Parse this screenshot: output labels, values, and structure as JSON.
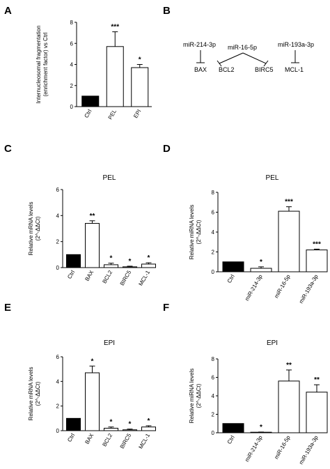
{
  "panels": {
    "A": {
      "label": "A"
    },
    "B": {
      "label": "B"
    },
    "C": {
      "label": "C"
    },
    "D": {
      "label": "D"
    },
    "E": {
      "label": "E"
    },
    "F": {
      "label": "F"
    }
  },
  "diagram": {
    "mirnas": [
      "miR-214-3p",
      "miR-16-5p",
      "miR-193a-3p"
    ],
    "targets": [
      "BAX",
      "BCL2",
      "BIRC5",
      "MCL-1"
    ]
  },
  "chart_data": [
    {
      "id": "A",
      "type": "bar",
      "title": "",
      "ylabel_lines": [
        "Internucleosomal fragmentation",
        "(enrichment factor) vs Ctrl"
      ],
      "categories": [
        "Ctrl",
        "PEL",
        "EPI"
      ],
      "values": [
        1.0,
        5.7,
        3.7
      ],
      "errors": [
        0,
        1.4,
        0.3
      ],
      "significance": [
        "",
        "***",
        "*"
      ],
      "fills": [
        "#000000",
        "#ffffff",
        "#ffffff"
      ],
      "ylim": [
        0,
        8
      ],
      "yticks": [
        "0",
        "2",
        "4",
        "6",
        "8"
      ]
    },
    {
      "id": "C",
      "type": "bar",
      "title": "PEL",
      "ylabel_lines": [
        "Relative mRNA levels",
        "(2^-ΔΔCt)"
      ],
      "categories": [
        "Ctrl",
        "BAX",
        "BCL2",
        "BIRC5",
        "MCL-1"
      ],
      "values": [
        1.0,
        3.4,
        0.22,
        0.06,
        0.27
      ],
      "errors": [
        0,
        0.2,
        0.12,
        0.05,
        0.1
      ],
      "significance": [
        "",
        "**",
        "*",
        "*",
        "*"
      ],
      "fills": [
        "#000000",
        "#ffffff",
        "#ffffff",
        "#ffffff",
        "#ffffff"
      ],
      "ylim": [
        0,
        6
      ],
      "yticks": [
        "0",
        "2",
        "4",
        "6"
      ]
    },
    {
      "id": "D",
      "type": "bar",
      "title": "PEL",
      "ylabel_lines": [
        "Relative miRNA levels",
        "(2^-ΔΔCt)"
      ],
      "categories": [
        "Ctrl",
        "miR-214-3p",
        "miR-16-5p",
        "miR-193a-3p"
      ],
      "values": [
        1.0,
        0.35,
        6.1,
        2.2
      ],
      "errors": [
        0,
        0.15,
        0.45,
        0.08
      ],
      "significance": [
        "",
        "*",
        "***",
        "***"
      ],
      "fills": [
        "#000000",
        "#ffffff",
        "#ffffff",
        "#ffffff"
      ],
      "ylim": [
        0,
        8
      ],
      "yticks": [
        "0",
        "2",
        "4",
        "6",
        "8"
      ]
    },
    {
      "id": "E",
      "type": "bar",
      "title": "EPI",
      "ylabel_lines": [
        "Relative mRNA levels",
        "(2^-ΔΔCt)"
      ],
      "categories": [
        "Ctrl",
        "BAX",
        "BCL2",
        "BIRC5",
        "MCL-1"
      ],
      "values": [
        1.0,
        4.7,
        0.2,
        0.07,
        0.3
      ],
      "errors": [
        0,
        0.55,
        0.1,
        0.06,
        0.1
      ],
      "significance": [
        "",
        "*",
        "*",
        "*",
        "*"
      ],
      "fills": [
        "#000000",
        "#ffffff",
        "#ffffff",
        "#ffffff",
        "#ffffff"
      ],
      "ylim": [
        0,
        6
      ],
      "yticks": [
        "0",
        "2",
        "4",
        "6"
      ]
    },
    {
      "id": "F",
      "type": "bar",
      "title": "EPI",
      "ylabel_lines": [
        "Relative miRNA levels",
        "(2^-ΔΔCt)"
      ],
      "categories": [
        "Ctrl",
        "miR-214-3p",
        "miR-16-5p",
        "miR-193a-3p"
      ],
      "values": [
        1.0,
        0.05,
        5.6,
        4.4
      ],
      "errors": [
        0,
        0.03,
        1.2,
        0.8
      ],
      "significance": [
        "",
        "*",
        "**",
        "**"
      ],
      "fills": [
        "#000000",
        "#ffffff",
        "#ffffff",
        "#ffffff"
      ],
      "ylim": [
        0,
        8
      ],
      "yticks": [
        "0",
        "2",
        "4",
        "6",
        "8"
      ]
    }
  ]
}
